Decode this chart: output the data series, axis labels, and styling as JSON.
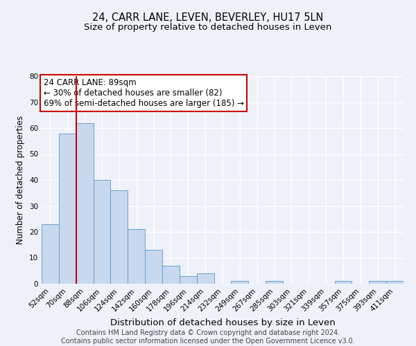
{
  "title": "24, CARR LANE, LEVEN, BEVERLEY, HU17 5LN",
  "subtitle": "Size of property relative to detached houses in Leven",
  "xlabel": "Distribution of detached houses by size in Leven",
  "ylabel": "Number of detached properties",
  "bar_labels": [
    "52sqm",
    "70sqm",
    "88sqm",
    "106sqm",
    "124sqm",
    "142sqm",
    "160sqm",
    "178sqm",
    "196sqm",
    "214sqm",
    "232sqm",
    "249sqm",
    "267sqm",
    "285sqm",
    "303sqm",
    "321sqm",
    "339sqm",
    "357sqm",
    "375sqm",
    "393sqm",
    "411sqm"
  ],
  "bar_values": [
    23,
    58,
    62,
    40,
    36,
    21,
    13,
    7,
    3,
    4,
    0,
    1,
    0,
    1,
    0,
    0,
    0,
    1,
    0,
    1,
    1
  ],
  "bar_color": "#c8d8ee",
  "bar_edge_color": "#6aa0cc",
  "vline_index": 2,
  "vline_color": "#cc0000",
  "annotation_line1": "24 CARR LANE: 89sqm",
  "annotation_line2": "← 30% of detached houses are smaller (82)",
  "annotation_line3": "69% of semi-detached houses are larger (185) →",
  "ylim": [
    0,
    80
  ],
  "yticks": [
    0,
    10,
    20,
    30,
    40,
    50,
    60,
    70,
    80
  ],
  "background_color": "#eef2f8",
  "grid_color": "#ffffff",
  "footer_text": "Contains HM Land Registry data © Crown copyright and database right 2024.\nContains public sector information licensed under the Open Government Licence v3.0.",
  "title_fontsize": 10.5,
  "subtitle_fontsize": 9.5,
  "xlabel_fontsize": 9.5,
  "ylabel_fontsize": 8.5,
  "tick_fontsize": 7.5,
  "annotation_fontsize": 8.5,
  "footer_fontsize": 7.0
}
